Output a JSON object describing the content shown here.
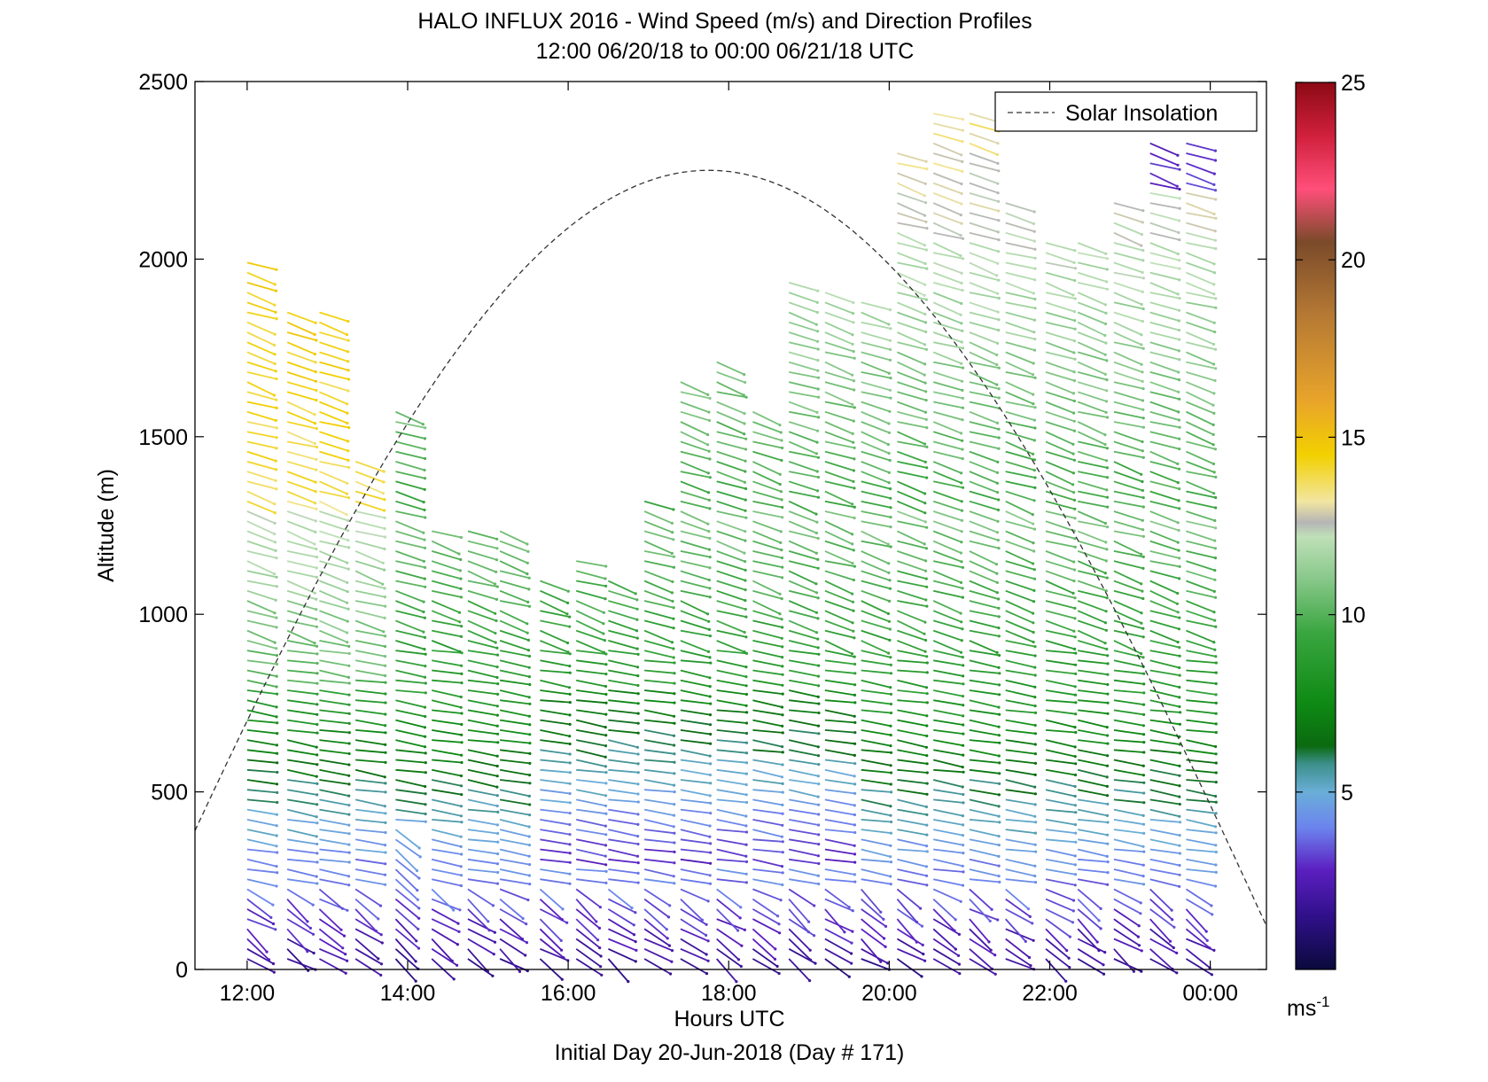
{
  "chart_data": {
    "type": "wind-barb-profile",
    "title": "HALO INFLUX 2016 - Wind Speed (m/s) and Direction Profiles",
    "subtitle": "12:00 06/20/18 to 00:00 06/21/18  UTC",
    "xlabel": "Hours UTC",
    "ylabel": "Altitude (m)",
    "footer": "Initial Day 20-Jun-2018 (Day # 171)",
    "xlim": [
      11.35,
      24.7
    ],
    "ylim": [
      0,
      2500
    ],
    "x_ticks": [
      12,
      14,
      16,
      18,
      20,
      22,
      24
    ],
    "x_tick_labels": [
      "12:00",
      "14:00",
      "16:00",
      "18:00",
      "20:00",
      "22:00",
      "00:00"
    ],
    "y_ticks": [
      0,
      500,
      1000,
      1500,
      2000,
      2500
    ],
    "y_tick_labels": [
      "0",
      "500",
      "1000",
      "1500",
      "2000",
      "2500"
    ],
    "legend": {
      "entries": [
        "Solar Insolation"
      ],
      "placement": "top-right"
    },
    "colorbar": {
      "range": [
        0,
        25
      ],
      "ticks": [
        5,
        10,
        15,
        20,
        25
      ],
      "tick_labels": [
        "5",
        "10",
        "15",
        "20",
        "25"
      ],
      "unit_base": "ms",
      "unit_exp": "-1",
      "stops": [
        {
          "v": 0,
          "color": "#0a0a3c"
        },
        {
          "v": 1.5,
          "color": "#30108a"
        },
        {
          "v": 2.8,
          "color": "#5b1fc0"
        },
        {
          "v": 4.0,
          "color": "#6c84ee"
        },
        {
          "v": 5.0,
          "color": "#6aaed8"
        },
        {
          "v": 5.8,
          "color": "#3c8f8a"
        },
        {
          "v": 6.3,
          "color": "#0a6a10"
        },
        {
          "v": 7.5,
          "color": "#0e8a14"
        },
        {
          "v": 9.5,
          "color": "#3aa640"
        },
        {
          "v": 11.0,
          "color": "#88c88a"
        },
        {
          "v": 12.2,
          "color": "#bfe0b8"
        },
        {
          "v": 12.6,
          "color": "#b5b5b5"
        },
        {
          "v": 13.2,
          "color": "#f2e6a0"
        },
        {
          "v": 14.5,
          "color": "#f2d000"
        },
        {
          "v": 16.0,
          "color": "#e9a52a"
        },
        {
          "v": 18.5,
          "color": "#b47834"
        },
        {
          "v": 20.5,
          "color": "#7a4a2a"
        },
        {
          "v": 22.0,
          "color": "#ff4f7a"
        },
        {
          "v": 23.5,
          "color": "#d0203c"
        },
        {
          "v": 25.0,
          "color": "#8c0a14"
        }
      ]
    },
    "solar_insolation": {
      "style": "dashed",
      "curve": "sine",
      "peak_time": 17.75,
      "peak_altitude": 2250,
      "half_width_hours": 7.2
    },
    "profile_times": [
      12.0,
      12.5,
      12.9,
      13.35,
      13.85,
      14.3,
      14.75,
      15.15,
      15.65,
      16.1,
      16.5,
      16.95,
      17.4,
      17.85,
      18.3,
      18.75,
      19.2,
      19.65,
      20.1,
      20.55,
      21.0,
      21.45,
      21.95,
      22.35,
      22.8,
      23.25,
      23.7
    ],
    "profile_tops": [
      2000,
      1850,
      1870,
      1450,
      1580,
      1260,
      1260,
      1250,
      1120,
      1160,
      1100,
      1340,
      1680,
      1720,
      1580,
      1950,
      1930,
      1880,
      2300,
      2420,
      2420,
      2180,
      2050,
      2050,
      2170,
      2330,
      2330
    ],
    "altitude_step_m": 28,
    "speed_model_note_free": null
  }
}
